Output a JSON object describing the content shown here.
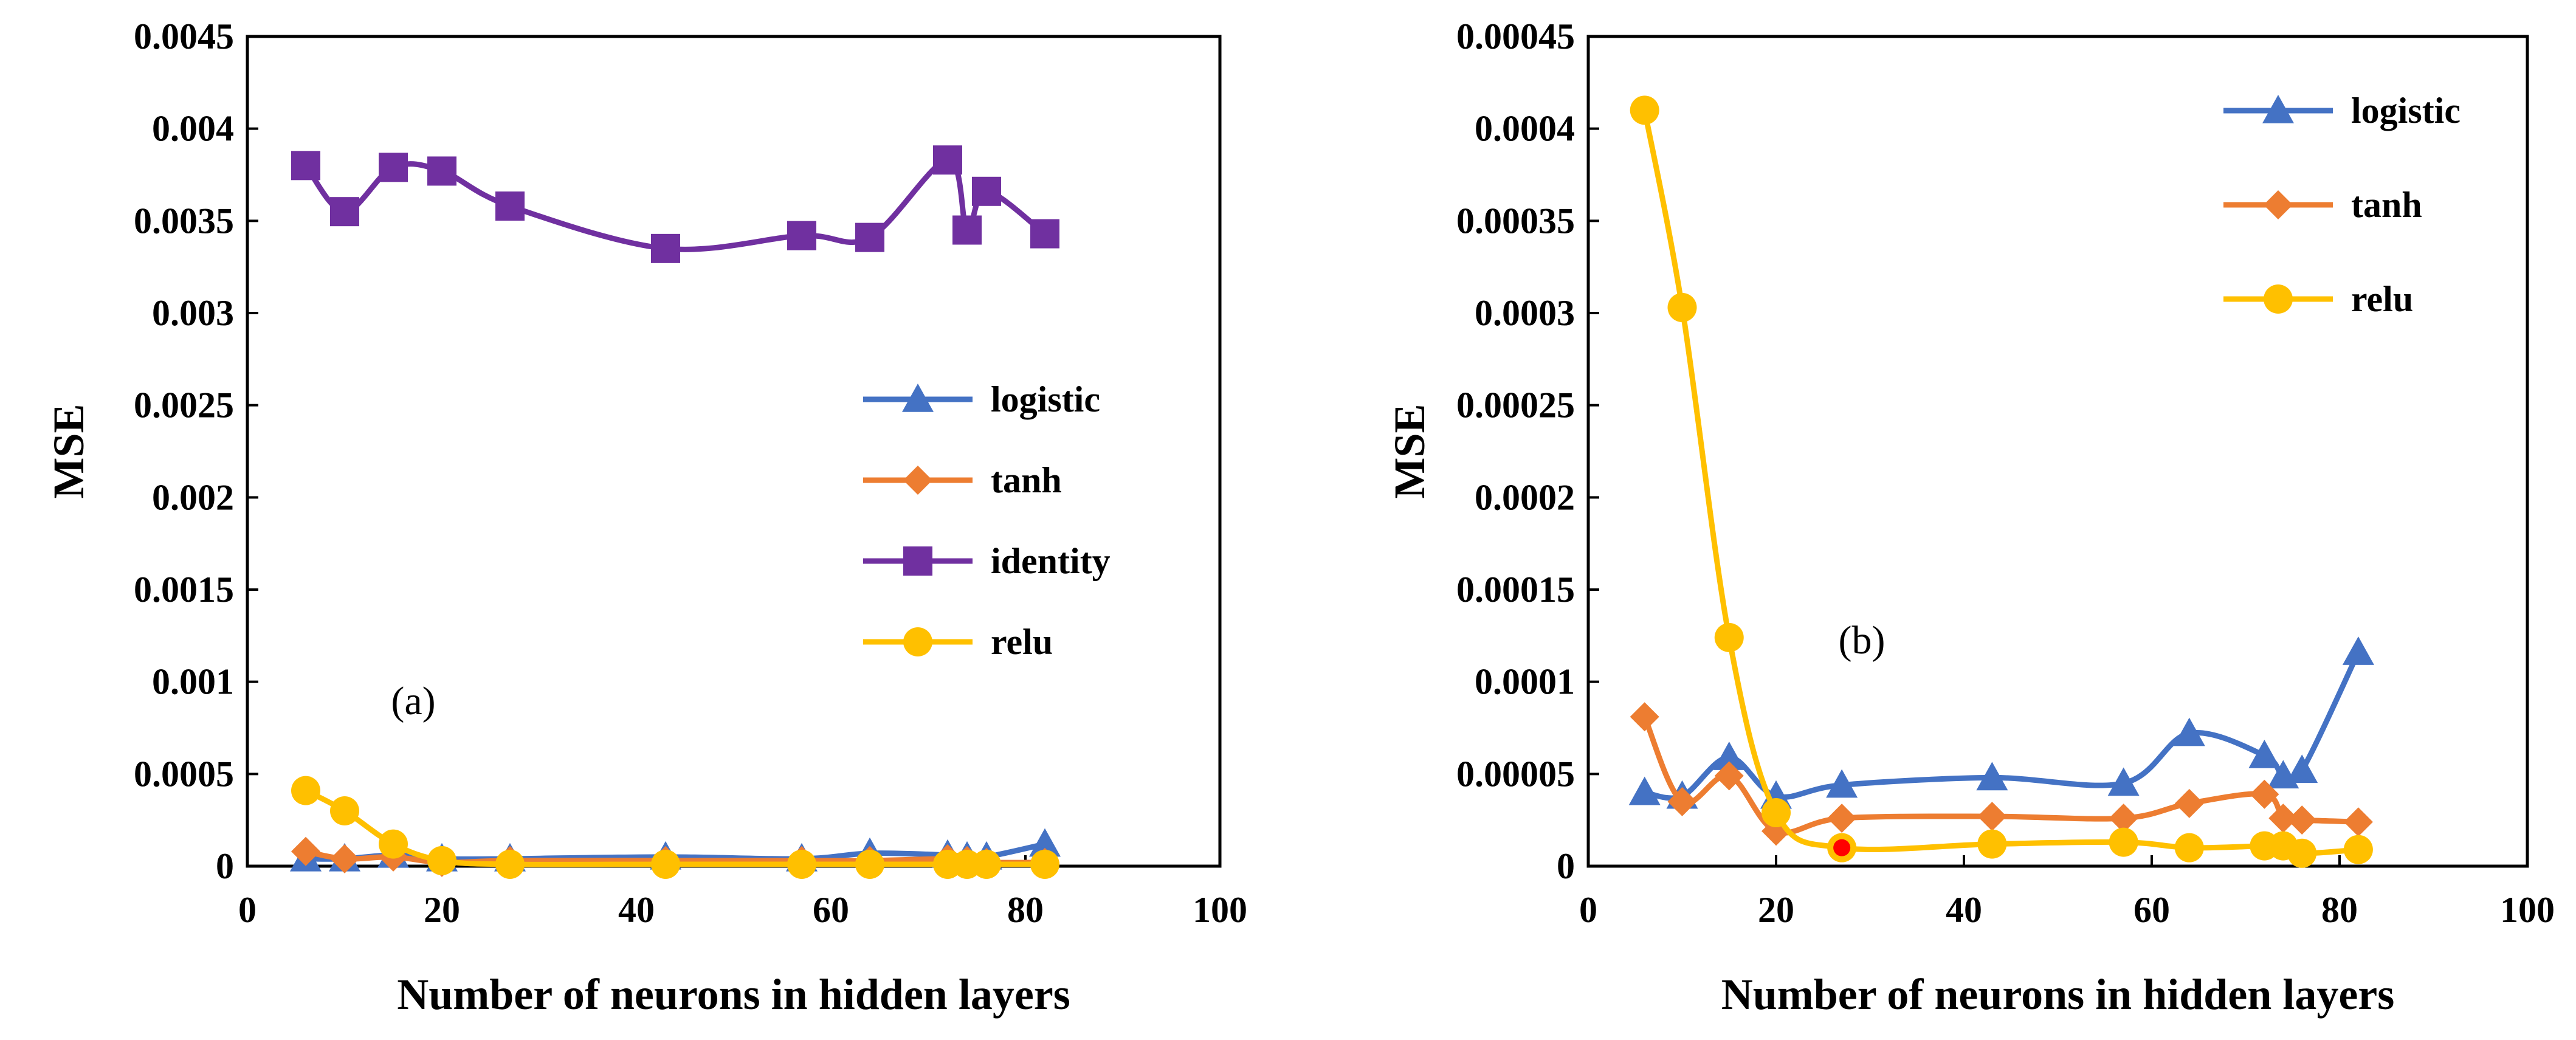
{
  "chart_data": [
    {
      "type": "line",
      "panel_label": "(a)",
      "xlabel": "Number of neurons in hidden layers",
      "ylabel": "MSE",
      "xlim": [
        0,
        100
      ],
      "ylim": [
        0,
        0.0045
      ],
      "x_ticks": [
        "0",
        "20",
        "40",
        "60",
        "80",
        "100"
      ],
      "y_ticks": [
        "0",
        "0.0005",
        "0.001",
        "0.0015",
        "0.002",
        "0.0025",
        "0.003",
        "0.0035",
        "0.004",
        "0.0045"
      ],
      "legend_position": "center-right",
      "series": [
        {
          "name": "logistic",
          "color": "#4472C4",
          "marker": "triangle",
          "x": [
            6,
            10,
            15,
            20,
            27,
            43,
            57,
            64,
            72,
            74,
            76,
            82
          ],
          "y": [
            4e-05,
            4e-05,
            6e-05,
            4e-05,
            4e-05,
            5e-05,
            4e-05,
            7e-05,
            6e-05,
            5e-05,
            5e-05,
            0.00012
          ]
        },
        {
          "name": "tanh",
          "color": "#ED7D31",
          "marker": "diamond",
          "x": [
            6,
            10,
            15,
            20,
            27,
            43,
            57,
            64,
            72,
            74,
            76,
            82
          ],
          "y": [
            8e-05,
            4e-05,
            5e-05,
            2e-05,
            3e-05,
            3e-05,
            3e-05,
            3e-05,
            4e-05,
            3e-05,
            2e-05,
            2e-05
          ]
        },
        {
          "name": "identity",
          "color": "#7030A0",
          "marker": "square",
          "x": [
            6,
            10,
            15,
            20,
            27,
            43,
            57,
            64,
            72,
            74,
            76,
            82
          ],
          "y": [
            0.0038,
            0.00355,
            0.00379,
            0.00377,
            0.00358,
            0.00335,
            0.00342,
            0.00341,
            0.00383,
            0.00345,
            0.00366,
            0.00343
          ]
        },
        {
          "name": "relu",
          "color": "#FFC000",
          "marker": "circle",
          "x": [
            6,
            10,
            15,
            20,
            27,
            43,
            57,
            64,
            72,
            74,
            76,
            82
          ],
          "y": [
            0.00041,
            0.0003,
            0.00012,
            3e-05,
            1e-05,
            1e-05,
            1e-05,
            1e-05,
            1e-05,
            1e-05,
            1e-05,
            1e-05
          ]
        }
      ]
    },
    {
      "type": "line",
      "panel_label": "(b)",
      "xlabel": "Number of neurons in hidden layers",
      "ylabel": "MSE",
      "xlim": [
        0,
        100
      ],
      "ylim": [
        0,
        0.00045
      ],
      "x_ticks": [
        "0",
        "20",
        "40",
        "60",
        "80",
        "100"
      ],
      "y_ticks": [
        "0",
        "0.00005",
        "0.0001",
        "0.00015",
        "0.0002",
        "0.00025",
        "0.0003",
        "0.00035",
        "0.0004",
        "0.00045"
      ],
      "legend_position": "top-right",
      "highlight_point": {
        "series": "relu",
        "x": 27,
        "y": 1e-05,
        "color": "#FF0000"
      },
      "series": [
        {
          "name": "logistic",
          "color": "#4472C4",
          "marker": "triangle",
          "x": [
            6,
            10,
            15,
            20,
            27,
            43,
            57,
            64,
            72,
            74,
            76,
            82
          ],
          "y": [
            4e-05,
            3.8e-05,
            5.9e-05,
            3.8e-05,
            4.4e-05,
            4.8e-05,
            4.5e-05,
            7.2e-05,
            6e-05,
            4.9e-05,
            5.2e-05,
            0.000116
          ]
        },
        {
          "name": "tanh",
          "color": "#ED7D31",
          "marker": "diamond",
          "x": [
            6,
            10,
            15,
            20,
            27,
            43,
            57,
            64,
            72,
            74,
            76,
            82
          ],
          "y": [
            8.1e-05,
            3.5e-05,
            4.9e-05,
            1.9e-05,
            2.6e-05,
            2.7e-05,
            2.6e-05,
            3.4e-05,
            3.9e-05,
            2.6e-05,
            2.5e-05,
            2.4e-05
          ]
        },
        {
          "name": "relu",
          "color": "#FFC000",
          "marker": "circle",
          "x": [
            6,
            10,
            15,
            20,
            27,
            43,
            57,
            64,
            72,
            74,
            76,
            82
          ],
          "y": [
            0.00041,
            0.000303,
            0.000124,
            2.9e-05,
            1e-05,
            1.2e-05,
            1.3e-05,
            1e-05,
            1.1e-05,
            1.1e-05,
            7e-06,
            9e-06
          ]
        }
      ]
    }
  ]
}
